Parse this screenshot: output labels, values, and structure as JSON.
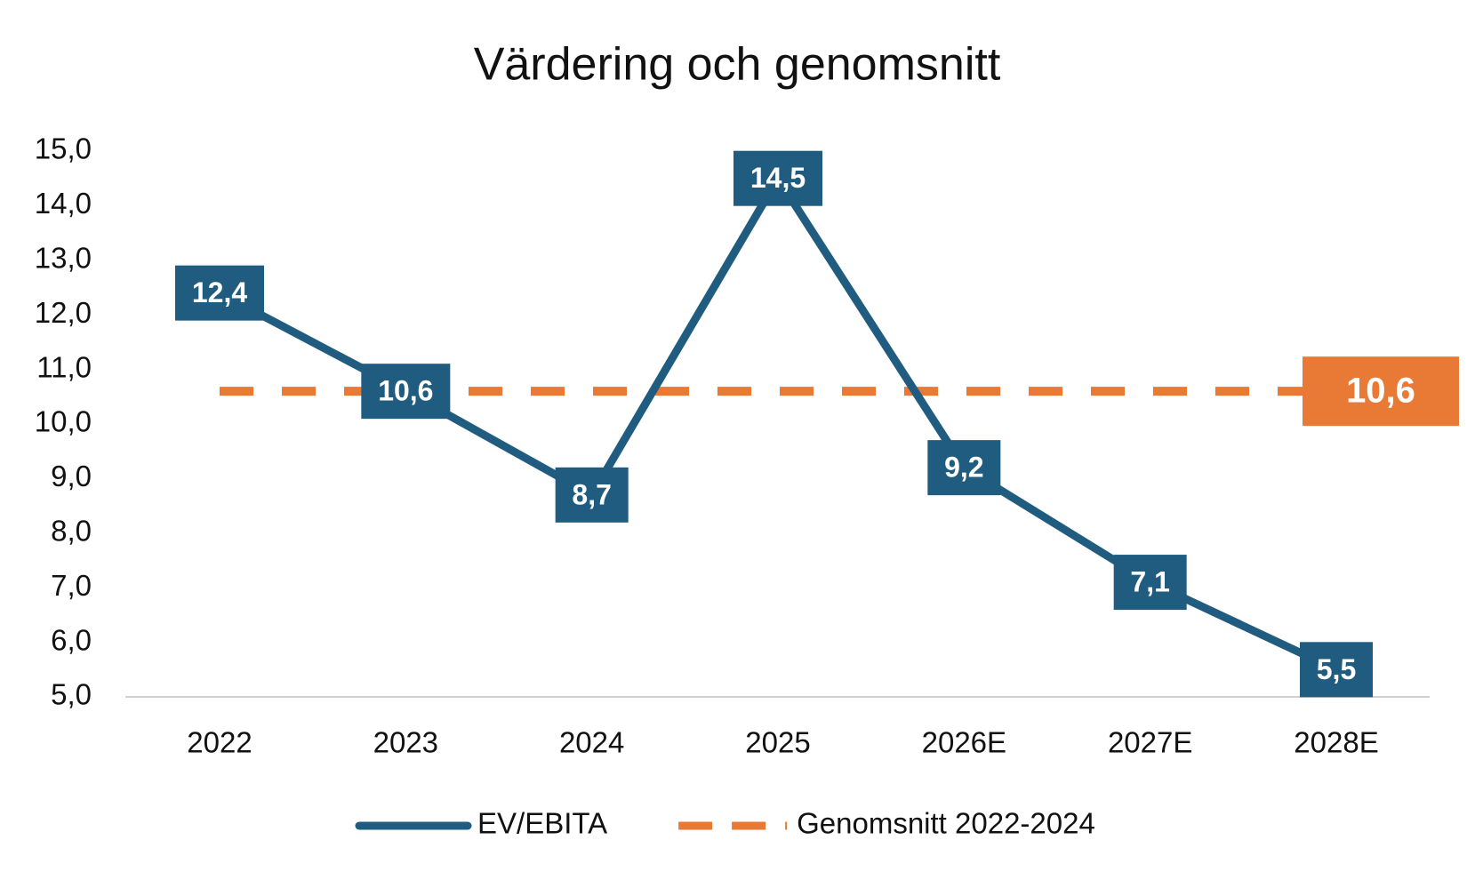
{
  "chart_data": {
    "type": "line",
    "title": "Värdering och genomsnitt",
    "categories": [
      "2022",
      "2023",
      "2024",
      "2025",
      "2026E",
      "2027E",
      "2028E"
    ],
    "series": [
      {
        "name": "EV/EBITA",
        "color": "#1f5c80",
        "values": [
          12.4,
          10.6,
          8.7,
          14.5,
          9.2,
          7.1,
          5.5
        ],
        "value_labels": [
          "12,4",
          "10,6",
          "8,7",
          "14,5",
          "9,2",
          "7,1",
          "5,5"
        ]
      },
      {
        "name": "Genomsnitt 2022-2024",
        "color": "#e87a35",
        "dashed": true,
        "values": [
          10.6,
          10.6,
          10.6,
          10.6,
          10.6,
          10.6,
          10.6
        ],
        "value_labels": [
          null,
          null,
          null,
          null,
          null,
          null,
          "10,6"
        ]
      }
    ],
    "ylim": [
      5,
      15
    ],
    "yticks": [
      {
        "value": 5,
        "label": "5,0"
      },
      {
        "value": 6,
        "label": "6,0"
      },
      {
        "value": 7,
        "label": "7,0"
      },
      {
        "value": 8,
        "label": "8,0"
      },
      {
        "value": 9,
        "label": "9,0"
      },
      {
        "value": 10,
        "label": "10,0"
      },
      {
        "value": 11,
        "label": "11,0"
      },
      {
        "value": 12,
        "label": "12,0"
      },
      {
        "value": 13,
        "label": "13,0"
      },
      {
        "value": 14,
        "label": "14,0"
      },
      {
        "value": 15,
        "label": "15,0"
      }
    ],
    "grid": false,
    "legend": "bottom"
  }
}
